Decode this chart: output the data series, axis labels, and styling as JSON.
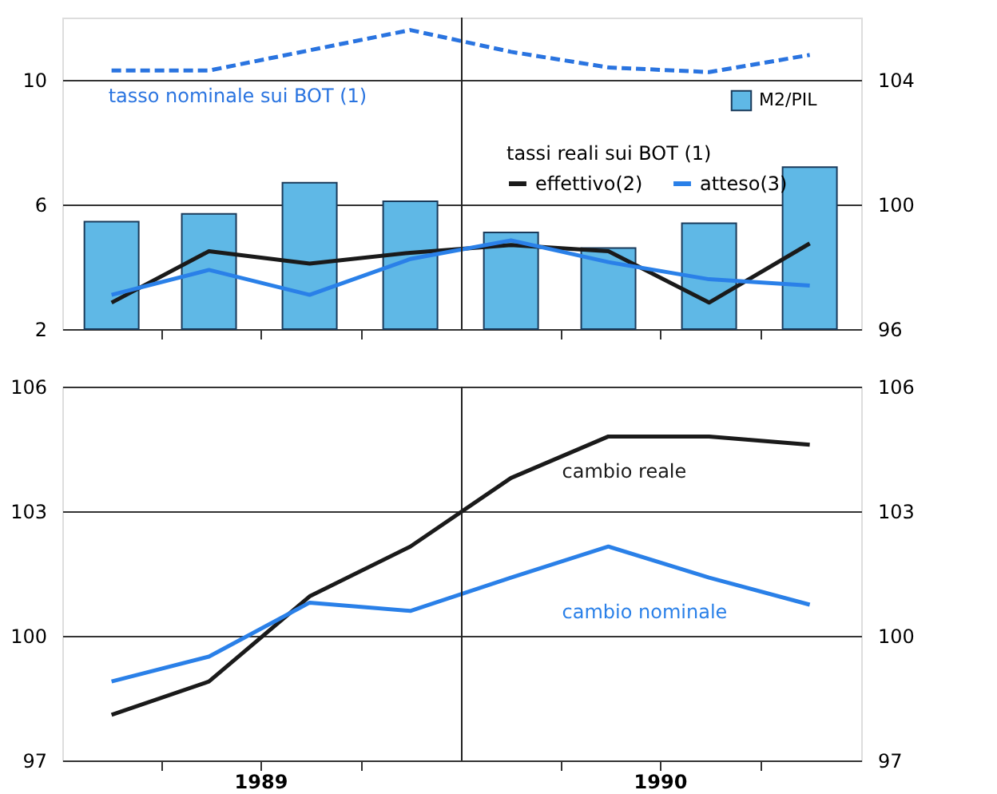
{
  "chart_data": [
    {
      "type": "bar",
      "x": [
        "1989-02-15",
        "1989-05-15",
        "1989-08-15",
        "1989-11-15",
        "1990-02-15",
        "1990-05-15",
        "1990-08-15",
        "1990-11-15"
      ],
      "xlim": [
        "1989-01-01",
        "1991-01-01"
      ],
      "xticks": [
        {
          "value": "1989-04-01",
          "label": null
        },
        {
          "value": "1989-07-01",
          "label": null
        },
        {
          "value": "1989-10-01",
          "label": null
        },
        {
          "value": "1990-04-01",
          "label": null
        },
        {
          "value": "1990-07-01",
          "label": null
        },
        {
          "value": "1990-10-01",
          "label": null
        }
      ],
      "ylim": [
        2,
        12
      ],
      "yticks": [
        2,
        6,
        10
      ],
      "y2lim": [
        96,
        106
      ],
      "y2ticks": [
        96,
        100,
        104
      ],
      "series": [
        {
          "name": "M2/PIL",
          "type": "bar",
          "axis": "y2",
          "color": "#5fb8e6",
          "values": [
            99.45,
            99.7,
            100.7,
            100.1,
            99.1,
            98.6,
            99.4,
            101.2
          ]
        },
        {
          "name": "tasso nominale sui BOT (1)",
          "type": "line",
          "line_style": "dashed",
          "color": "#2a74e0",
          "values": [
            10.3,
            10.3,
            10.95,
            11.6,
            10.9,
            10.4,
            10.25,
            10.8
          ]
        },
        {
          "name": "effettivo(2)",
          "type": "line",
          "color": "#1a1a1a",
          "values": [
            2.85,
            4.5,
            4.1,
            4.45,
            4.7,
            4.5,
            2.85,
            4.75
          ]
        },
        {
          "name": "atteso(3)",
          "type": "line",
          "color": "#2a80e8",
          "values": [
            3.1,
            3.9,
            3.1,
            4.25,
            4.85,
            4.15,
            3.6,
            3.4
          ]
        }
      ],
      "legend_title": "tassi reali sui BOT (1)",
      "legend": "right",
      "grid": "y",
      "tick_labels": "y",
      "ref_lines": [
        {
          "axis": "x",
          "value": "1990-01-01"
        }
      ]
    },
    {
      "type": "line",
      "x": [
        "1989-02-15",
        "1989-05-15",
        "1989-08-15",
        "1989-11-15",
        "1990-02-15",
        "1990-05-15",
        "1990-08-15",
        "1990-11-15"
      ],
      "xlim": [
        "1989-01-01",
        "1991-01-01"
      ],
      "xticks": [
        {
          "value": "1989-04-01",
          "label": null
        },
        {
          "value": "1989-07-01",
          "label": "1989"
        },
        {
          "value": "1989-10-01",
          "label": null
        },
        {
          "value": "1990-04-01",
          "label": null
        },
        {
          "value": "1990-07-01",
          "label": "1990"
        },
        {
          "value": "1990-10-01",
          "label": null
        }
      ],
      "ylim": [
        97,
        106
      ],
      "yticks": [
        97,
        100,
        103,
        106
      ],
      "y2lim": [
        97,
        106
      ],
      "y2ticks": [
        97,
        100,
        103,
        106
      ],
      "series": [
        {
          "name": "cambio reale",
          "color": "#1a1a1a",
          "values": [
            98.1,
            98.9,
            100.95,
            102.15,
            103.8,
            104.8,
            104.8,
            104.6
          ]
        },
        {
          "name": "cambio nominale",
          "color": "#2a80e8",
          "values": [
            98.9,
            99.5,
            100.8,
            100.6,
            101.4,
            102.15,
            101.4,
            100.75
          ]
        }
      ],
      "grid": "y",
      "ref_lines": [
        {
          "axis": "x",
          "value": "1990-01-01"
        }
      ]
    }
  ]
}
